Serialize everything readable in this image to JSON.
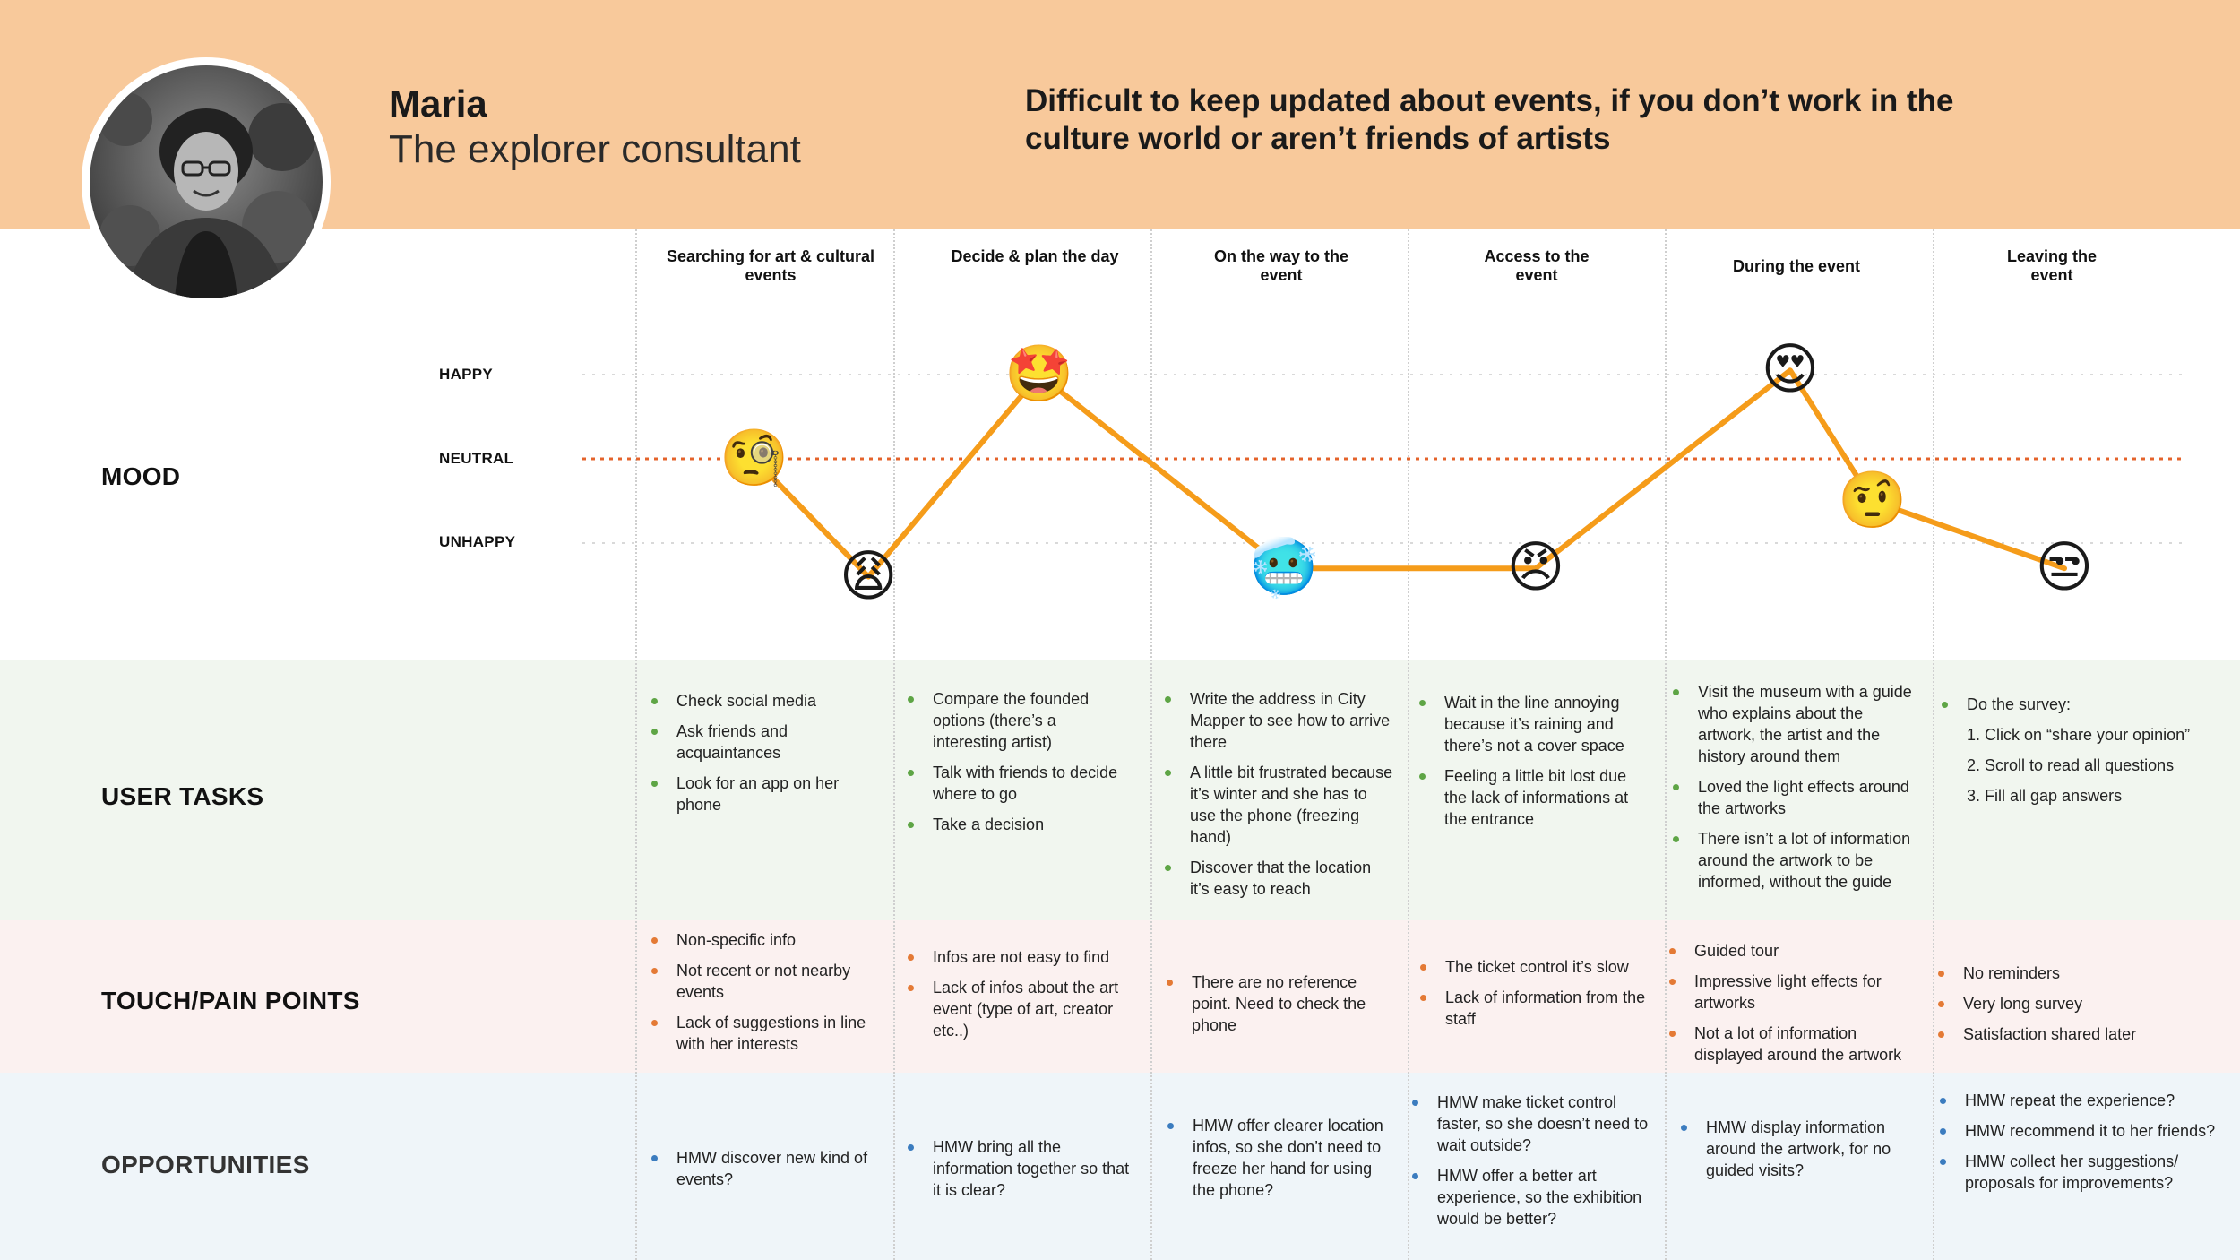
{
  "persona": {
    "name": "Maria",
    "role": "The explorer consultant",
    "headline": "Difficult to keep updated about events, if you don’t work in the culture world or aren’t friends of artists"
  },
  "stages": [
    "Searching for art & cultural events",
    "Decide & plan the day",
    "On the way to the event",
    "Access to the event",
    "During the event",
    "Leaving the event"
  ],
  "row_titles": {
    "mood": "MOOD",
    "tasks": "USER TASKS",
    "pain": "TOUCH/PAIN POINTS",
    "opportunities": "OPPORTUNITIES"
  },
  "chart_data": {
    "type": "line",
    "y_levels": [
      "HAPPY",
      "NEUTRAL",
      "UNHAPPY"
    ],
    "ylim": [
      -1,
      1
    ],
    "series": [
      {
        "points": [
          {
            "stage": 1,
            "mood": 0.0,
            "emoji": "🧐"
          },
          {
            "stage": 1.4,
            "mood": -1.4,
            "emoji": "😩"
          },
          {
            "stage": 2,
            "mood": 1.0,
            "emoji": "🤩"
          },
          {
            "stage": 3,
            "mood": -1.3,
            "emoji": "🥶"
          },
          {
            "stage": 4,
            "mood": -1.3,
            "emoji": "😠"
          },
          {
            "stage": 5,
            "mood": 1.05,
            "emoji": "😍"
          },
          {
            "stage": 5.3,
            "mood": -0.5,
            "emoji": "🤨"
          },
          {
            "stage": 6,
            "mood": -1.3,
            "emoji": "😒"
          }
        ]
      }
    ],
    "line_color": "#f59c1a",
    "neutral_line_color": "#e4632b"
  },
  "tasks": [
    {
      "items": [
        "Check social media",
        "Ask friends and acquaintances",
        "Look for an app on her phone"
      ]
    },
    {
      "items": [
        "Compare the founded options (there’s a interesting artist)",
        "Talk with friends to decide where to go",
        "Take a decision"
      ]
    },
    {
      "items": [
        "Write the address in City Mapper to see how to arrive there",
        "A little bit frustrated because it’s winter and she has to use the phone (freezing hand)",
        "Discover that the location it’s easy to reach"
      ]
    },
    {
      "items": [
        "Wait in the line annoying because it’s raining and there’s not a cover space",
        "Feeling a little bit lost due the lack of informations at the entrance"
      ]
    },
    {
      "items": [
        "Visit the museum with a guide who explains about the artwork, the artist and the history around them",
        "Loved the light effects around the artworks",
        "There isn’t a lot of information around the artwork to be informed, without the guide"
      ]
    },
    {
      "items": [
        "Do the survey:"
      ],
      "steps": [
        "1. Click on “share your opinion”",
        "2. Scroll to read all questions",
        "3. Fill all gap answers"
      ]
    }
  ],
  "pain_points": [
    {
      "items": [
        "Non-specific info",
        "Not recent or not nearby events",
        "Lack of suggestions in line with her interests"
      ]
    },
    {
      "items": [
        "Infos are not easy to find",
        "Lack of infos about the art event (type of art, creator etc..)"
      ]
    },
    {
      "items": [
        "There are no reference point. Need to check the phone"
      ]
    },
    {
      "items": [
        "The ticket control it’s slow",
        "Lack of information from the staff"
      ]
    },
    {
      "items": [
        "Guided tour",
        "Impressive light effects for artworks",
        "Not a lot of information displayed around the artwork"
      ]
    },
    {
      "items": [
        "No reminders",
        "Very long survey",
        "Satisfaction shared later"
      ]
    }
  ],
  "opportunities": [
    {
      "items": [
        "HMW discover new kind of events?"
      ]
    },
    {
      "items": [
        "HMW bring all the information together so that it is clear?"
      ]
    },
    {
      "items": [
        "HMW offer clearer location infos, so she don’t need to freeze her hand  for using the phone?"
      ]
    },
    {
      "items": [
        "HMW make ticket control faster, so she doesn’t need to wait outside?",
        "HMW offer a better art experience, so the exhibition would be better?"
      ]
    },
    {
      "items": [
        "HMW display information around the artwork, for no guided visits?"
      ]
    },
    {
      "items": [
        "HMW repeat the experience?",
        "HMW recommend it to her friends?",
        "HMW collect her suggestions/ proposals for improvements?"
      ]
    }
  ]
}
